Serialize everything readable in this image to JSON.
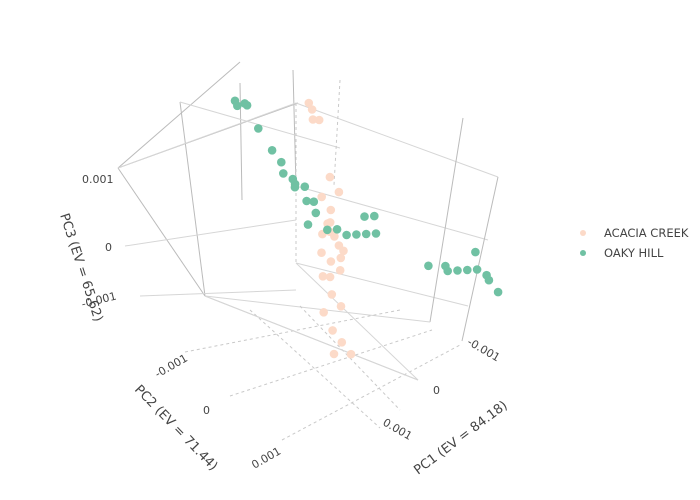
{
  "chart_data": {
    "type": "scatter3d",
    "title": "",
    "axes": {
      "x": {
        "title": "PC1 (EV = 84.18)",
        "ticks": [
          "-0.001",
          "0",
          "0.001"
        ]
      },
      "y": {
        "title": "PC2 (EV = 71.44)",
        "ticks": [
          "-0.001",
          "0",
          "0.001"
        ]
      },
      "z": {
        "title": "PC3 (EV = 65.62)",
        "ticks": [
          "0.001",
          "0",
          "-0.001"
        ]
      }
    },
    "grid": true,
    "legend_position": "right",
    "series": [
      {
        "name": "ACACIA CREEK",
        "color": "#fcdac8",
        "points": [
          {
            "x": -0.0004,
            "y": -0.0002,
            "z": 0.0016
          },
          {
            "x": -0.0004,
            "y": -0.00025,
            "z": 0.00145
          },
          {
            "x": -0.00035,
            "y": -0.0002,
            "z": 0.00138
          },
          {
            "x": -0.0003,
            "y": -0.00022,
            "z": 0.0014
          },
          {
            "x": 0.0,
            "y": 0.0,
            "z": 0.00095
          },
          {
            "x": 0.0001,
            "y": 0.0,
            "z": 0.0008
          },
          {
            "x": 0.0,
            "y": 0.0001,
            "z": 0.00072
          },
          {
            "x": 0.0001,
            "y": 0.0001,
            "z": 0.0006
          },
          {
            "x": 0.0001,
            "y": 0.0001,
            "z": 0.0004
          },
          {
            "x": 0.0001,
            "y": 0.0001,
            "z": 0.00025
          },
          {
            "x": 0.00015,
            "y": 0.0001,
            "z": 0.00022
          },
          {
            "x": 0.0,
            "y": 0.0,
            "z": 0.0002
          },
          {
            "x": 0.0002,
            "y": 0.0001,
            "z": 0.00012
          },
          {
            "x": 0.00025,
            "y": 0.0001,
            "z": 8e-05
          },
          {
            "x": 0.0001,
            "y": 0.0002,
            "z": 0.0
          },
          {
            "x": 0.0002,
            "y": 0.0002,
            "z": -5e-05
          },
          {
            "x": 0.0003,
            "y": 0.0002,
            "z": -0.0001
          },
          {
            "x": 0.0002,
            "y": 0.0002,
            "z": -0.0003
          },
          {
            "x": 0.0003,
            "y": 0.0003,
            "z": -0.0004
          },
          {
            "x": 0.0004,
            "y": 0.0003,
            "z": -0.0005
          },
          {
            "x": 0.0003,
            "y": 0.0004,
            "z": -0.0006
          },
          {
            "x": 0.0004,
            "y": 0.0004,
            "z": -0.0008
          },
          {
            "x": 0.0005,
            "y": 0.0004,
            "z": -0.0009
          },
          {
            "x": 0.0005,
            "y": 0.0005,
            "z": -0.001
          },
          {
            "x": 0.0006,
            "y": 0.0004,
            "z": -0.001
          },
          {
            "x": 0.0003,
            "y": 0.0002,
            "z": 0.0001
          },
          {
            "x": 0.0002,
            "y": 0.0003,
            "z": -0.0002
          },
          {
            "x": 0.0001,
            "y": 0.0002,
            "z": 0.0003
          }
        ]
      },
      {
        "name": "OAKY HILL",
        "color": "#70c1a3",
        "points": [
          {
            "x": -0.0016,
            "y": -0.0008,
            "z": 0.0
          },
          {
            "x": -0.0015,
            "y": -0.0008,
            "z": 5e-05
          },
          {
            "x": -0.0015,
            "y": -0.0007,
            "z": 0.0001
          },
          {
            "x": -0.0014,
            "y": -0.0007,
            "z": 0.0002
          },
          {
            "x": -0.0012,
            "y": -0.0006,
            "z": 0.0001
          },
          {
            "x": -0.0009,
            "y": -0.0004,
            "z": 0.0002
          },
          {
            "x": -0.0008,
            "y": -0.0004,
            "z": 0.0001
          },
          {
            "x": -0.0007,
            "y": -0.0003,
            "z": 0.0001
          },
          {
            "x": -0.0006,
            "y": -0.0003,
            "z": 0.0001
          },
          {
            "x": -0.0005,
            "y": -0.0002,
            "z": 0.00015
          },
          {
            "x": -0.0005,
            "y": -0.0002,
            "z": 0.0002
          },
          {
            "x": -0.0004,
            "y": -0.0002,
            "z": 0.00025
          },
          {
            "x": -0.0003,
            "y": -0.0001,
            "z": 0.0002
          },
          {
            "x": -0.0003,
            "y": -0.0002,
            "z": 0.0001
          },
          {
            "x": -0.0002,
            "y": -0.0001,
            "z": 0.0001
          },
          {
            "x": -0.0002,
            "y": 0.0,
            "z": 0.0
          },
          {
            "x": 0.0,
            "y": 0.0,
            "z": 0.0001
          },
          {
            "x": 0.0001,
            "y": 0.0,
            "z": 0.0002
          },
          {
            "x": 0.0002,
            "y": 0.0,
            "z": 0.0002
          },
          {
            "x": 0.0003,
            "y": 0.0,
            "z": 0.0003
          },
          {
            "x": 0.0004,
            "y": 0.0,
            "z": 0.0004
          },
          {
            "x": 0.0005,
            "y": 0.0,
            "z": 0.0005
          },
          {
            "x": 0.0003,
            "y": -0.0001,
            "z": 0.0005
          },
          {
            "x": 0.0004,
            "y": -0.0001,
            "z": 0.0006
          },
          {
            "x": 0.0012,
            "y": 0.0002,
            "z": 0.0008
          },
          {
            "x": 0.0013,
            "y": 0.0001,
            "z": 0.0008
          },
          {
            "x": 0.0014,
            "y": 0.0002,
            "z": 0.0009
          },
          {
            "x": 0.0015,
            "y": 0.0002,
            "z": 0.001
          },
          {
            "x": 0.0016,
            "y": 0.0002,
            "z": 0.0011
          },
          {
            "x": 0.0017,
            "y": 0.0002,
            "z": 0.0012
          },
          {
            "x": 0.0018,
            "y": 0.0002,
            "z": 0.0012
          },
          {
            "x": 0.0016,
            "y": 0.0001,
            "z": 0.0013
          },
          {
            "x": 0.0019,
            "y": 0.0003,
            "z": 0.0013
          },
          {
            "x": 0.002,
            "y": 0.0003,
            "z": 0.0012
          }
        ]
      }
    ]
  }
}
